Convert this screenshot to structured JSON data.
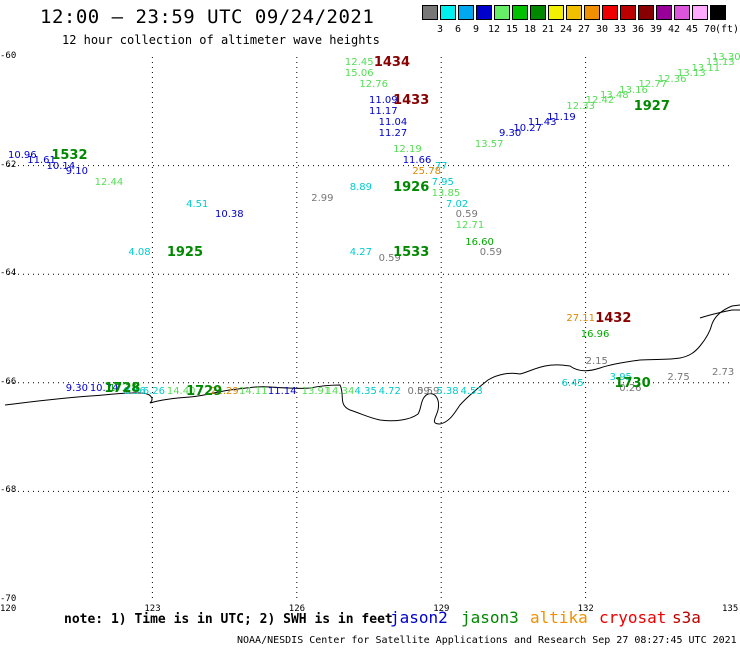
{
  "title": "12:00 – 23:59 UTC 09/24/2021",
  "subtitle": "12 hour collection of altimeter wave heights",
  "scale": {
    "unit": "(ft)",
    "bins": [
      {
        "label": "3",
        "color": "#777777"
      },
      {
        "label": "6",
        "color": "#00f0f0"
      },
      {
        "label": "9",
        "color": "#00a8f0"
      },
      {
        "label": "12",
        "color": "#0000cc"
      },
      {
        "label": "15",
        "color": "#66ee66"
      },
      {
        "label": "18",
        "color": "#00c000"
      },
      {
        "label": "21",
        "color": "#008800"
      },
      {
        "label": "24",
        "color": "#f0f000"
      },
      {
        "label": "27",
        "color": "#f0c000"
      },
      {
        "label": "30",
        "color": "#f09000"
      },
      {
        "label": "33",
        "color": "#ee0000"
      },
      {
        "label": "36",
        "color": "#bb0000"
      },
      {
        "label": "39",
        "color": "#880000"
      },
      {
        "label": "42",
        "color": "#990099"
      },
      {
        "label": "45",
        "color": "#dd55dd"
      },
      {
        "label": "70",
        "color": "#ffaaff"
      },
      {
        "label": "",
        "color": "#000000"
      }
    ]
  },
  "axes": {
    "lat_labels": [
      "-60",
      "-62",
      "-64",
      "-66",
      "-68",
      "-70"
    ],
    "lon_labels": [
      "120",
      "123",
      "126",
      "129",
      "132",
      "135"
    ]
  },
  "colors": {
    "jason2": "#0000cc",
    "jason3": "#008800",
    "altika": "#f09000",
    "cryosat": "#ee0000",
    "s3a": "#bb0000",
    "grey": "#777777",
    "cyan": "#00cccc",
    "ltgreen": "#55dd55",
    "green": "#00aa00",
    "dkred": "#880000",
    "orange": "#dd8800"
  },
  "labels": [
    {
      "t": "10.96",
      "c": "jason2",
      "lon": 120.0,
      "lat": -61.8
    },
    {
      "t": "11.61",
      "c": "jason2",
      "lon": 120.4,
      "lat": -61.9
    },
    {
      "t": "10.14",
      "c": "jason2",
      "lon": 120.8,
      "lat": -62.0
    },
    {
      "t": "9.10",
      "c": "jason2",
      "lon": 121.2,
      "lat": -62.1
    },
    {
      "t": "12.44",
      "c": "ltgreen",
      "lon": 121.8,
      "lat": -62.3
    },
    {
      "t": "4.51",
      "c": "cyan",
      "lon": 123.7,
      "lat": -62.7
    },
    {
      "t": "10.38",
      "c": "jason2",
      "lon": 124.3,
      "lat": -62.9
    },
    {
      "t": "4.08",
      "c": "cyan",
      "lon": 122.5,
      "lat": -63.6
    },
    {
      "t": "2.99",
      "c": "grey",
      "lon": 126.3,
      "lat": -62.6
    },
    {
      "t": "12.45",
      "c": "ltgreen",
      "lon": 127.0,
      "lat": -60.1
    },
    {
      "t": "15.06",
      "c": "ltgreen",
      "lon": 127.0,
      "lat": -60.3
    },
    {
      "t": "12.76",
      "c": "ltgreen",
      "lon": 127.3,
      "lat": -60.5
    },
    {
      "t": "11.09",
      "c": "jason2",
      "lon": 127.5,
      "lat": -60.8
    },
    {
      "t": "11.17",
      "c": "jason2",
      "lon": 127.5,
      "lat": -61.0
    },
    {
      "t": "11.04",
      "c": "jason2",
      "lon": 127.7,
      "lat": -61.2
    },
    {
      "t": "11.27",
      "c": "jason2",
      "lon": 127.7,
      "lat": -61.4
    },
    {
      "t": "12.19",
      "c": "ltgreen",
      "lon": 128.0,
      "lat": -61.7
    },
    {
      "t": "11.66",
      "c": "jason2",
      "lon": 128.2,
      "lat": -61.9
    },
    {
      "t": "25.78",
      "c": "orange",
      "lon": 128.4,
      "lat": -62.1
    },
    {
      "t": ".77",
      "c": "cyan",
      "lon": 128.8,
      "lat": -62.0
    },
    {
      "t": "7.95",
      "c": "cyan",
      "lon": 128.8,
      "lat": -62.3
    },
    {
      "t": "8.89",
      "c": "cyan",
      "lon": 127.1,
      "lat": -62.4
    },
    {
      "t": "13.85",
      "c": "ltgreen",
      "lon": 128.8,
      "lat": -62.5
    },
    {
      "t": "7.02",
      "c": "cyan",
      "lon": 129.1,
      "lat": -62.7
    },
    {
      "t": "0.59",
      "c": "grey",
      "lon": 129.3,
      "lat": -62.9
    },
    {
      "t": "12.71",
      "c": "ltgreen",
      "lon": 129.3,
      "lat": -63.1
    },
    {
      "t": "16.60",
      "c": "green",
      "lon": 129.5,
      "lat": -63.4
    },
    {
      "t": "0.59",
      "c": "grey",
      "lon": 129.8,
      "lat": -63.6
    },
    {
      "t": "4.27",
      "c": "cyan",
      "lon": 127.1,
      "lat": -63.6
    },
    {
      "t": "0.59",
      "c": "grey",
      "lon": 127.7,
      "lat": -63.7
    },
    {
      "t": "13.57",
      "c": "ltgreen",
      "lon": 129.7,
      "lat": -61.6
    },
    {
      "t": "9.30",
      "c": "jason2",
      "lon": 130.2,
      "lat": -61.4
    },
    {
      "t": "10.27",
      "c": "jason2",
      "lon": 130.5,
      "lat": -61.3
    },
    {
      "t": "11.43",
      "c": "jason2",
      "lon": 130.8,
      "lat": -61.2
    },
    {
      "t": "11.19",
      "c": "jason2",
      "lon": 131.2,
      "lat": -61.1
    },
    {
      "t": "12.33",
      "c": "ltgreen",
      "lon": 131.6,
      "lat": -60.9
    },
    {
      "t": "12.42",
      "c": "ltgreen",
      "lon": 132.0,
      "lat": -60.8
    },
    {
      "t": "13.48",
      "c": "ltgreen",
      "lon": 132.3,
      "lat": -60.7
    },
    {
      "t": "13.16",
      "c": "ltgreen",
      "lon": 132.7,
      "lat": -60.6
    },
    {
      "t": "12.77",
      "c": "ltgreen",
      "lon": 133.1,
      "lat": -60.5
    },
    {
      "t": "12.36",
      "c": "ltgreen",
      "lon": 133.5,
      "lat": -60.4
    },
    {
      "t": "13.13",
      "c": "ltgreen",
      "lon": 133.9,
      "lat": -60.3
    },
    {
      "t": "13.11",
      "c": "ltgreen",
      "lon": 134.2,
      "lat": -60.2
    },
    {
      "t": "13.13",
      "c": "ltgreen",
      "lon": 134.5,
      "lat": -60.1
    },
    {
      "t": "13.30",
      "c": "ltgreen",
      "lon": 134.8,
      "lat": -60.0
    },
    {
      "t": "27.11",
      "c": "orange",
      "lon": 131.6,
      "lat": -64.8
    },
    {
      "t": "16.96",
      "c": "green",
      "lon": 131.9,
      "lat": -65.1
    },
    {
      "t": "2.15",
      "c": "grey",
      "lon": 132.0,
      "lat": -65.6
    },
    {
      "t": "3.95",
      "c": "cyan",
      "lon": 132.5,
      "lat": -65.9
    },
    {
      "t": "6.45",
      "c": "cyan",
      "lon": 131.5,
      "lat": -66.0
    },
    {
      "t": "0.26",
      "c": "grey",
      "lon": 132.7,
      "lat": -66.1
    },
    {
      "t": "2.75",
      "c": "grey",
      "lon": 133.7,
      "lat": -65.9
    },
    {
      "t": "2.73",
      "c": "grey",
      "lon": 134.7,
      "lat": -65.8
    },
    {
      "t": "9.30",
      "c": "jason2",
      "lon": 121.2,
      "lat": -66.1
    },
    {
      "t": "10.74",
      "c": "jason2",
      "lon": 121.7,
      "lat": -66.1
    },
    {
      "t": "17.28",
      "c": "green",
      "lon": 122.1,
      "lat": -66.1
    },
    {
      "t": "8.56",
      "c": "cyan",
      "lon": 122.4,
      "lat": -66.15
    },
    {
      "t": "6.26",
      "c": "cyan",
      "lon": 122.8,
      "lat": -66.15
    },
    {
      "t": "14.40",
      "c": "ltgreen",
      "lon": 123.3,
      "lat": -66.15
    },
    {
      "t": "21.29",
      "c": "orange",
      "lon": 124.2,
      "lat": -66.15
    },
    {
      "t": "14.11",
      "c": "ltgreen",
      "lon": 124.8,
      "lat": -66.15
    },
    {
      "t": "11.14",
      "c": "jason2",
      "lon": 125.4,
      "lat": -66.15
    },
    {
      "t": "13.91",
      "c": "ltgreen",
      "lon": 126.1,
      "lat": -66.15
    },
    {
      "t": "14.34",
      "c": "ltgreen",
      "lon": 126.6,
      "lat": -66.15
    },
    {
      "t": "4.35",
      "c": "cyan",
      "lon": 127.2,
      "lat": -66.15
    },
    {
      "t": "4.72",
      "c": "cyan",
      "lon": 127.7,
      "lat": -66.15
    },
    {
      "t": "0.59",
      "c": "grey",
      "lon": 128.3,
      "lat": -66.15
    },
    {
      "t": "0.59",
      "c": "grey",
      "lon": 128.5,
      "lat": -66.15
    },
    {
      "t": "5.38",
      "c": "cyan",
      "lon": 128.9,
      "lat": -66.15
    },
    {
      "t": "4.53",
      "c": "cyan",
      "lon": 129.4,
      "lat": -66.15
    }
  ],
  "passes": [
    {
      "t": "1532",
      "c": "jason3",
      "lon": 120.9,
      "lat": -61.8
    },
    {
      "t": "1925",
      "c": "jason3",
      "lon": 123.3,
      "lat": -63.6
    },
    {
      "t": "1434",
      "c": "dkred",
      "lon": 127.6,
      "lat": -60.1
    },
    {
      "t": "1433",
      "c": "dkred",
      "lon": 128.0,
      "lat": -60.8
    },
    {
      "t": "1926",
      "c": "jason3",
      "lon": 128.0,
      "lat": -62.4
    },
    {
      "t": "1533",
      "c": "jason3",
      "lon": 128.0,
      "lat": -63.6
    },
    {
      "t": "1927",
      "c": "jason3",
      "lon": 133.0,
      "lat": -60.9
    },
    {
      "t": "1432",
      "c": "dkred",
      "lon": 132.2,
      "lat": -64.8
    },
    {
      "t": "1730",
      "c": "jason3",
      "lon": 132.6,
      "lat": -66.0
    },
    {
      "t": "1729",
      "c": "jason3",
      "lon": 123.7,
      "lat": -66.15
    },
    {
      "t": "1728",
      "c": "jason3",
      "lon": 122.0,
      "lat": -66.1
    }
  ],
  "note": "note: 1) Time is in UTC; 2) SWH is in feet",
  "satellites": [
    {
      "name": "jason2",
      "c": "jason2"
    },
    {
      "name": "jason3",
      "c": "jason3"
    },
    {
      "name": "altika",
      "c": "altika"
    },
    {
      "name": "cryosat",
      "c": "cryosat"
    },
    {
      "name": "s3a",
      "c": "s3a"
    }
  ],
  "credit": "NOAA/NESDIS Center for Satellite Applications and Research   Sep 27 08:27:45 UTC 2021"
}
